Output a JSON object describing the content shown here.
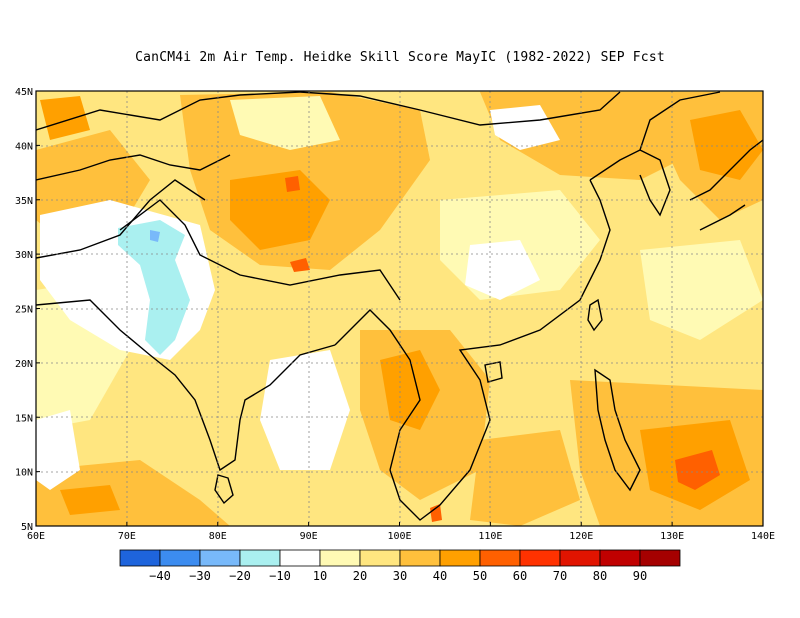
{
  "title": "CanCM4i  2m Air Temp. Heidke Skill Score MayIC (1982-2022) SEP Fcst",
  "map": {
    "lon_range": [
      60,
      140
    ],
    "lat_range": [
      5,
      45
    ],
    "lon_ticks": [
      "60E",
      "70E",
      "80E",
      "90E",
      "100E",
      "110E",
      "120E",
      "130E",
      "140E"
    ],
    "lat_ticks": [
      "5N",
      "10N",
      "15N",
      "20N",
      "25N",
      "30N",
      "35N",
      "40N",
      "45N"
    ],
    "grid": true
  },
  "colorbar": {
    "colors": [
      "#1e64dc",
      "#3c8cf0",
      "#78b9fa",
      "#aaf0f0",
      "#ffffff",
      "#fffab4",
      "#ffe680",
      "#ffc03c",
      "#ffa000",
      "#ff6000",
      "#ff3200",
      "#e11400",
      "#c00000",
      "#a50000"
    ],
    "labels": [
      "-40",
      "-30",
      "-20",
      "-10",
      "10",
      "20",
      "30",
      "40",
      "50",
      "60",
      "70",
      "80",
      "90"
    ]
  },
  "chart_data": {
    "type": "heatmap",
    "title": "CanCM4i  2m Air Temp. Heidke Skill Score MayIC (1982-2022) SEP Fcst",
    "x_axis": "longitude",
    "y_axis": "latitude",
    "xlim": [
      60,
      140
    ],
    "ylim": [
      5,
      45
    ],
    "levels": [
      -40,
      -30,
      -20,
      -10,
      10,
      20,
      30,
      40,
      50,
      60,
      70,
      80,
      90
    ],
    "regions": [
      {
        "lon": 72,
        "lat": 27,
        "value": -15
      },
      {
        "lon": 71,
        "lat": 30,
        "value": -25
      },
      {
        "lon": 86,
        "lat": 17,
        "value": 5
      },
      {
        "lon": 88,
        "lat": 34,
        "value": 45
      },
      {
        "lon": 101,
        "lat": 17,
        "value": 45
      },
      {
        "lon": 133,
        "lat": 10,
        "value": 55
      },
      {
        "lon": 115,
        "lat": 35,
        "value": 20
      },
      {
        "lon": 125,
        "lat": 25,
        "value": 30
      },
      {
        "lon": 65,
        "lat": 40,
        "value": 35
      }
    ]
  }
}
